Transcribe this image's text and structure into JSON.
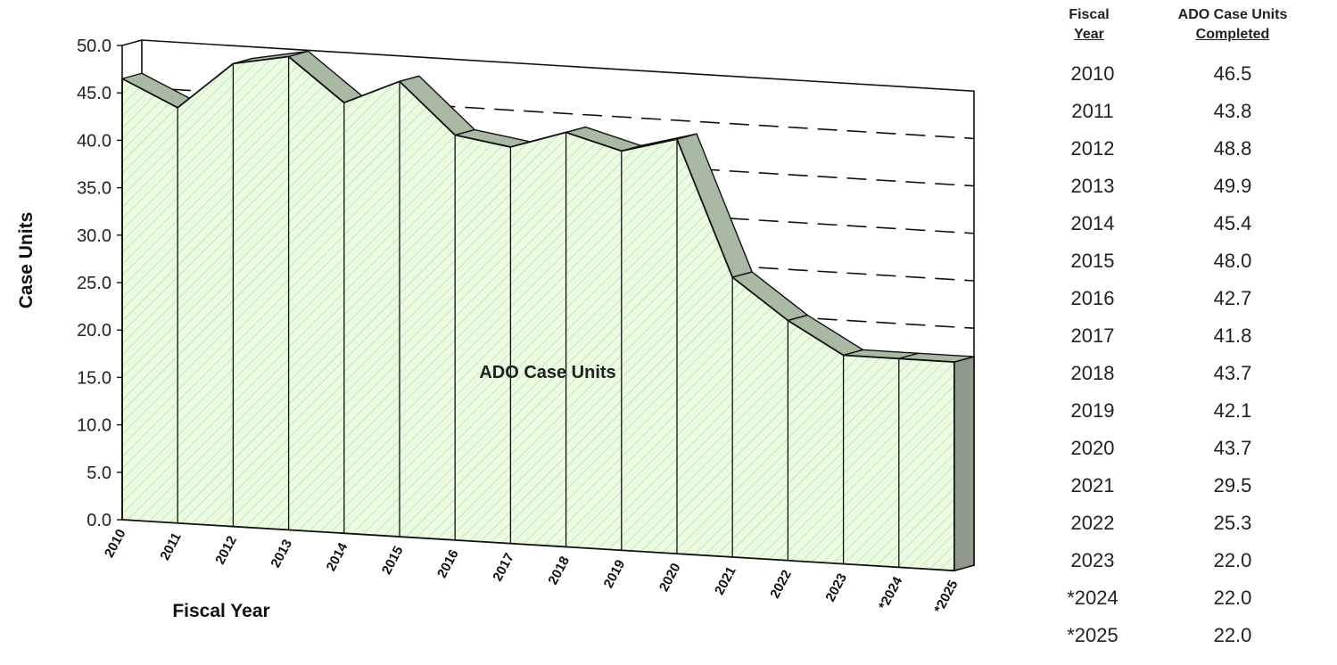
{
  "chart_data": {
    "type": "area",
    "categories": [
      "2010",
      "2011",
      "2012",
      "2013",
      "2014",
      "2015",
      "2016",
      "2017",
      "2018",
      "2019",
      "2020",
      "2021",
      "2022",
      "2023",
      "*2024",
      "*2025"
    ],
    "values": [
      46.5,
      43.8,
      48.8,
      49.9,
      45.4,
      48.0,
      42.7,
      41.8,
      43.7,
      42.1,
      43.7,
      29.5,
      25.3,
      22.0,
      22.0,
      22.0
    ],
    "series_label": "ADO Case Units",
    "xlabel": "Fiscal Year",
    "ylabel": "Case Units",
    "ylim": [
      0,
      50
    ],
    "yticks": [
      "0.0",
      "5.0",
      "10.0",
      "15.0",
      "20.0",
      "25.0",
      "30.0",
      "35.0",
      "40.0",
      "45.0",
      "50.0"
    ],
    "fill_color": "#eafbe2",
    "top_color": "#a9b9a3",
    "side_color": "#8f9a8c",
    "three_d": true,
    "grid": "dashed"
  },
  "table": {
    "header_year_line1": "Fiscal",
    "header_year_line2": "Year",
    "header_value_line1": "ADO Case Units",
    "header_value_line2": "Completed",
    "rows": [
      {
        "year": "2010",
        "value": "46.5"
      },
      {
        "year": "2011",
        "value": "43.8"
      },
      {
        "year": "2012",
        "value": "48.8"
      },
      {
        "year": "2013",
        "value": "49.9"
      },
      {
        "year": "2014",
        "value": "45.4"
      },
      {
        "year": "2015",
        "value": "48.0"
      },
      {
        "year": "2016",
        "value": "42.7"
      },
      {
        "year": "2017",
        "value": "41.8"
      },
      {
        "year": "2018",
        "value": "43.7"
      },
      {
        "year": "2019",
        "value": "42.1"
      },
      {
        "year": "2020",
        "value": "43.7"
      },
      {
        "year": "2021",
        "value": "29.5"
      },
      {
        "year": "2022",
        "value": "25.3"
      },
      {
        "year": "2023",
        "value": "22.0"
      },
      {
        "year": "*2024",
        "value": "22.0"
      },
      {
        "year": "*2025",
        "value": "22.0"
      }
    ]
  }
}
